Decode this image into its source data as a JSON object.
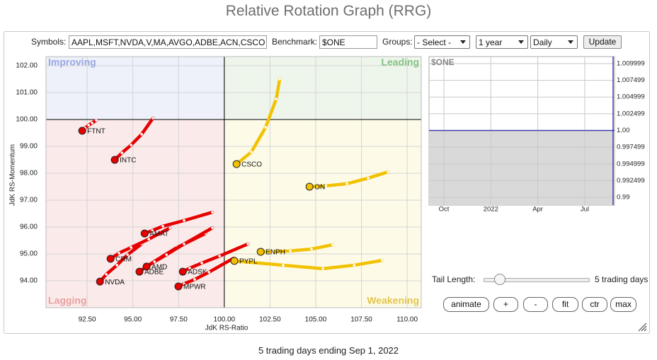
{
  "header": {
    "title": "Relative Rotation Graph (RRG)"
  },
  "controls": {
    "symbols_label": "Symbols:",
    "symbols": "AAPL,MSFT,NVDA,V,MA,AVGO,ADBE,ACN,CSCO",
    "benchmark_label": "Benchmark:",
    "benchmark": "$ONE",
    "groups_label": "Groups:",
    "groups": "- Select -",
    "period": "1 year",
    "frequency": "Daily",
    "update": "Update"
  },
  "chart_data": [
    {
      "type": "rrg",
      "x_label": "JdK RS-Ratio",
      "y_label": "JdK RS-Momentum",
      "xlim": [
        90.25,
        110.77
      ],
      "ylim": [
        93,
        102.34
      ],
      "center": [
        100,
        100
      ],
      "xticks": [
        {
          "value": 92.5,
          "label": "92.50"
        },
        {
          "value": 95,
          "label": "95.00"
        },
        {
          "value": 97.5,
          "label": "97.50"
        },
        {
          "value": 100,
          "label": "100.00"
        },
        {
          "value": 102.5,
          "label": "102.50"
        },
        {
          "value": 105,
          "label": "105.00"
        },
        {
          "value": 107.5,
          "label": "107.50"
        },
        {
          "value": 110,
          "label": "110.00"
        }
      ],
      "yticks": [
        {
          "value": 94,
          "label": "94.00"
        },
        {
          "value": 95,
          "label": "95.00"
        },
        {
          "value": 96,
          "label": "96.00"
        },
        {
          "value": 97,
          "label": "97.00"
        },
        {
          "value": 98,
          "label": "98.00"
        },
        {
          "value": 99,
          "label": "99.00"
        },
        {
          "value": 100,
          "label": "100.00"
        },
        {
          "value": 101,
          "label": "101.00"
        },
        {
          "value": 102,
          "label": "102.00"
        }
      ],
      "grid": true,
      "quadrants": [
        {
          "name": "Improving",
          "corner": "top-left",
          "fill": "#eef0fa",
          "color": "#9aa8e2"
        },
        {
          "name": "Leading",
          "corner": "top-right",
          "fill": "#eef6ec",
          "color": "#86c386"
        },
        {
          "name": "Lagging",
          "corner": "bottom-left",
          "fill": "#fbeaea",
          "color": "#e9a0a0"
        },
        {
          "name": "Weakening",
          "corner": "bottom-right",
          "fill": "#fdfbe8",
          "color": "#e2c44c"
        }
      ],
      "series": [
        {
          "name": "FTNT",
          "color": "#e60000",
          "x": [
            93.0,
            92.77,
            92.58,
            92.39,
            92.23
          ],
          "values": [
            99.97,
            99.87,
            99.79,
            99.68,
            99.58
          ]
        },
        {
          "name": "INTC",
          "color": "#e60000",
          "x": [
            96.1,
            95.48,
            94.9,
            94.4,
            94.01
          ],
          "values": [
            100.05,
            99.45,
            99.05,
            98.76,
            98.5
          ]
        },
        {
          "name": "NVDA",
          "color": "#e60000",
          "x": [
            95.48,
            94.71,
            94.13,
            93.55,
            93.2
          ],
          "values": [
            95.37,
            94.97,
            94.58,
            94.24,
            93.97
          ]
        },
        {
          "name": "CRM",
          "color": "#e60000",
          "x": [
            97.03,
            95.87,
            94.9,
            94.24,
            93.78
          ],
          "values": [
            95.97,
            95.55,
            95.24,
            95.03,
            94.82
          ]
        },
        {
          "name": "AMAT",
          "color": "#e60000",
          "x": [
            99.35,
            97.8,
            96.64,
            96.06,
            95.64
          ],
          "values": [
            96.55,
            96.24,
            96.03,
            95.87,
            95.76
          ]
        },
        {
          "name": "ADBE",
          "color": "#e60000",
          "x": [
            98.97,
            97.42,
            96.45,
            95.79,
            95.36
          ],
          "values": [
            95.76,
            95.24,
            94.84,
            94.55,
            94.34
          ]
        },
        {
          "name": "AMD",
          "color": "#e60000",
          "x": [
            99.35,
            97.8,
            96.84,
            96.18,
            95.75
          ],
          "values": [
            95.97,
            95.37,
            94.97,
            94.71,
            94.53
          ]
        },
        {
          "name": "ADSK",
          "color": "#e60000",
          "x": [
            101.29,
            99.74,
            98.77,
            98.11,
            97.73
          ],
          "values": [
            95.37,
            94.92,
            94.66,
            94.47,
            94.34
          ]
        },
        {
          "name": "MPWR",
          "color": "#e60000",
          "x": [
            100.51,
            99.16,
            98.38,
            97.8,
            97.49
          ],
          "values": [
            94.84,
            94.32,
            94.05,
            93.89,
            93.79
          ]
        },
        {
          "name": "ON",
          "color": "#f2c200",
          "x": [
            108.95,
            107.87,
            106.71,
            105.55,
            104.66
          ],
          "values": [
            98.05,
            97.82,
            97.61,
            97.53,
            97.5
          ]
        },
        {
          "name": "ENPH",
          "color": "#f2c200",
          "x": [
            105.93,
            104.77,
            103.61,
            102.64,
            101.99
          ],
          "values": [
            95.34,
            95.18,
            95.11,
            95.08,
            95.08
          ]
        },
        {
          "name": "PYPL",
          "color": "#f2c200",
          "x": [
            108.64,
            107.1,
            105.39,
            103.22,
            100.55
          ],
          "values": [
            94.76,
            94.58,
            94.45,
            94.58,
            94.74
          ]
        },
        {
          "name": "CSCO",
          "color": "#f2c200",
          "x": [
            103.03,
            102.84,
            102.26,
            101.48,
            100.67
          ],
          "values": [
            101.5,
            100.76,
            99.71,
            98.79,
            98.34
          ]
        }
      ]
    },
    {
      "type": "line",
      "title": "$ONE",
      "categories": [
        "Oct",
        "2022",
        "Apr",
        "Jul"
      ],
      "values": [
        1,
        1,
        1,
        1
      ],
      "color": "#3b3bb0",
      "ylim": [
        0.98884,
        1.01105
      ],
      "yticks": [
        {
          "value": 1.0099999,
          "label": "1.009999"
        },
        {
          "value": 1.0074999,
          "label": "1.007499"
        },
        {
          "value": 1.0049999,
          "label": "1.004999"
        },
        {
          "value": 1.0024999,
          "label": "1.002499"
        },
        {
          "value": 1,
          "label": "1.00"
        },
        {
          "value": 0.9974999,
          "label": "0.997499"
        },
        {
          "value": 0.9949999,
          "label": "0.994999"
        },
        {
          "value": 0.9924999,
          "label": "0.992499"
        },
        {
          "value": 0.99,
          "label": "0.99"
        }
      ],
      "grid": true
    }
  ],
  "tail": {
    "label": "Tail Length:",
    "value_label": "5 trading days"
  },
  "buttons": [
    "animate",
    "+",
    "-",
    "fit",
    "ctr",
    "max"
  ],
  "footer": "5 trading days ending Sep 1, 2022"
}
